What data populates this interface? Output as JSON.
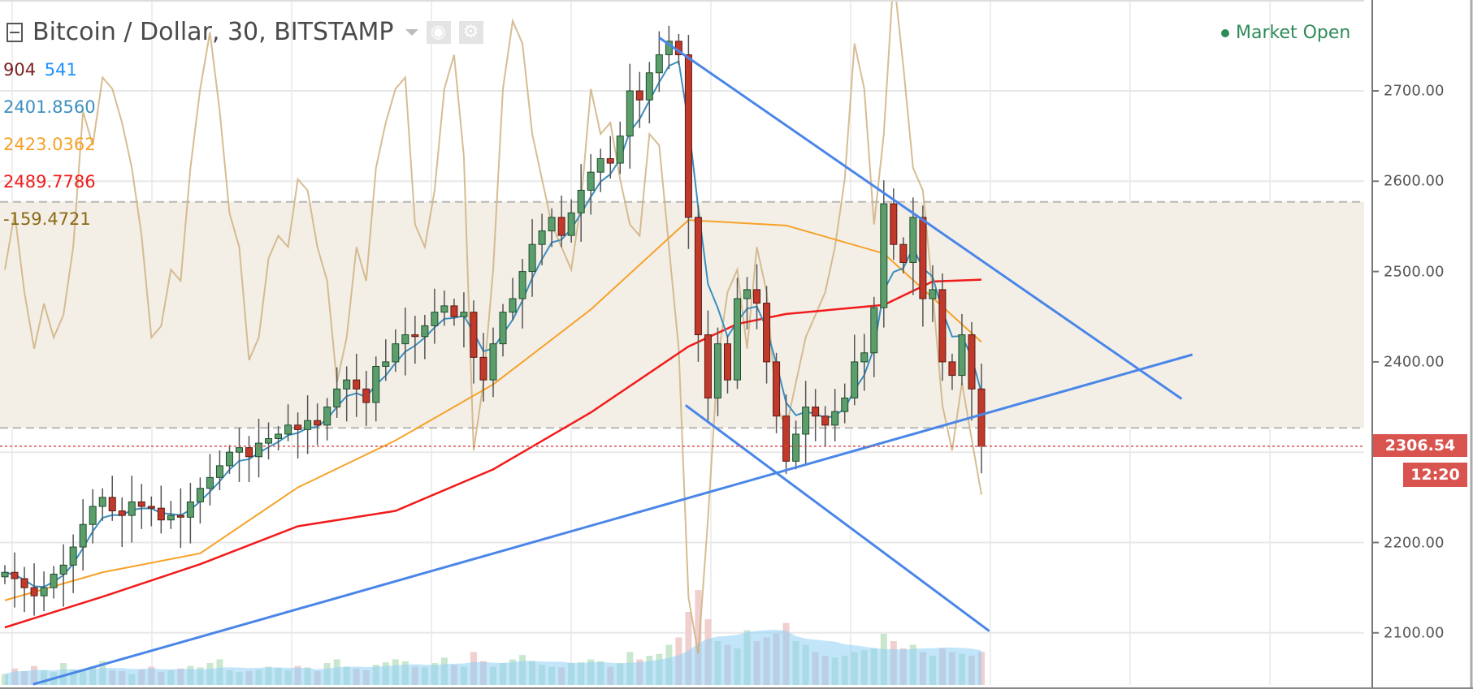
{
  "header": {
    "title": "Bitcoin / Dollar, 30, BITSTAMP",
    "market_status": "Market Open",
    "market_status_color": "#2e8b57",
    "icons": [
      "collapse-icon",
      "caret-down-icon",
      "eye-icon",
      "gear-icon"
    ]
  },
  "legend": {
    "volume": "904",
    "volume_ma": "541",
    "ma_fast": "2401.8560",
    "ma_mid": "2423.0362",
    "ma_slow": "2489.7786",
    "oscillator": "-159.4721"
  },
  "axis": {
    "ticks": [
      "2700.00",
      "2600.00",
      "2500.00",
      "2400.00",
      "2200.00",
      "2100.00"
    ],
    "last_price": "2306.54",
    "countdown": "12:20"
  },
  "colors": {
    "up": "#5b9e6b",
    "down": "#c0392b",
    "ma_fast": "#3b8fc0",
    "ma_mid": "#f7a128",
    "ma_slow": "#f21b1b",
    "oscillator": "#cfb180",
    "trendline": "#4a86e8",
    "volume_ma": "#8fd0f5",
    "last_price": "#d9534f"
  },
  "chart_data": {
    "type": "candlestick",
    "ylim": [
      2040,
      2800
    ],
    "yticks": [
      2100,
      2200,
      2300,
      2400,
      2500,
      2600,
      2700
    ],
    "grid": true,
    "closes": [
      2167,
      2160,
      2150,
      2141,
      2150,
      2165,
      2175,
      2195,
      2220,
      2240,
      2250,
      2235,
      2230,
      2245,
      2240,
      2238,
      2225,
      2230,
      2228,
      2245,
      2260,
      2272,
      2285,
      2300,
      2305,
      2295,
      2310,
      2315,
      2320,
      2330,
      2325,
      2335,
      2330,
      2350,
      2370,
      2380,
      2370,
      2355,
      2395,
      2400,
      2420,
      2430,
      2428,
      2440,
      2455,
      2462,
      2450,
      2455,
      2405,
      2380,
      2420,
      2455,
      2470,
      2500,
      2530,
      2545,
      2560,
      2540,
      2565,
      2590,
      2610,
      2625,
      2620,
      2650,
      2700,
      2690,
      2720,
      2740,
      2755,
      2740,
      2560,
      2430,
      2360,
      2420,
      2380,
      2470,
      2480,
      2465,
      2400,
      2340,
      2290,
      2320,
      2350,
      2340,
      2330,
      2345,
      2360,
      2400,
      2410,
      2460,
      2575,
      2530,
      2510,
      2560,
      2470,
      2480,
      2400,
      2385,
      2430,
      2370,
      2306.54
    ],
    "ma_mid": {
      "bar": [
        0,
        10,
        20,
        30,
        40,
        50,
        60,
        70,
        80,
        90,
        100
      ],
      "value": [
        2136,
        2167,
        2188,
        2261,
        2313,
        2375,
        2458,
        2557,
        2551,
        2520,
        2422
      ]
    },
    "ma_slow": {
      "bar": [
        0,
        10,
        20,
        30,
        40,
        50,
        60,
        70,
        75,
        80,
        90,
        95,
        100
      ],
      "value": [
        2106,
        2140,
        2176,
        2218,
        2235,
        2281,
        2344,
        2417,
        2442,
        2453,
        2463,
        2489,
        2491
      ]
    },
    "oscillator": {
      "upper_band": 100,
      "lower_band": -100,
      "values": [
        40,
        90,
        20,
        -30,
        10,
        -20,
        0,
        60,
        180,
        150,
        210,
        200,
        170,
        130,
        70,
        -20,
        -10,
        40,
        30,
        130,
        200,
        250,
        180,
        90,
        60,
        -40,
        -20,
        50,
        70,
        60,
        120,
        110,
        60,
        30,
        -60,
        -20,
        60,
        30,
        130,
        170,
        200,
        210,
        80,
        60,
        110,
        200,
        230,
        140,
        -120,
        -60,
        40,
        200,
        260,
        240,
        160,
        120,
        80,
        60,
        40,
        100,
        200,
        160,
        170,
        120,
        80,
        70,
        160,
        150,
        60,
        -30,
        -250,
        -300,
        -180,
        -40,
        20,
        40,
        -30,
        60,
        20,
        -80,
        -100,
        -60,
        -20,
        0,
        20,
        60,
        120,
        240,
        200,
        80,
        160,
        300,
        220,
        130,
        110,
        20,
        -80,
        -120,
        -60,
        -110,
        -159
      ]
    },
    "volume": [
      300,
      450,
      380,
      520,
      400,
      350,
      600,
      420,
      380,
      500,
      650,
      400,
      380,
      300,
      420,
      500,
      360,
      400,
      450,
      520,
      480,
      600,
      700,
      400,
      350,
      380,
      420,
      500,
      460,
      400,
      520,
      480,
      380,
      600,
      700,
      500,
      450,
      400,
      550,
      620,
      700,
      650,
      500,
      480,
      600,
      750,
      550,
      500,
      900,
      650,
      500,
      600,
      700,
      820,
      650,
      550,
      500,
      480,
      600,
      620,
      700,
      650,
      500,
      600,
      900,
      700,
      800,
      850,
      1100,
      1300,
      2000,
      2600,
      1800,
      1200,
      1100,
      1000,
      1500,
      1200,
      1300,
      1400,
      1700,
      1200,
      1100,
      900,
      800,
      750,
      800,
      900,
      950,
      1000,
      1400,
      1200,
      1000,
      1100,
      900,
      800,
      1000,
      900,
      850,
      800,
      904
    ],
    "trendlines": [
      {
        "from": [
          67,
          2759
        ],
        "to": [
          120.5,
          2359
        ]
      },
      {
        "from": [
          2.9,
          2043
        ],
        "to": [
          121.6,
          2408
        ]
      },
      {
        "from": [
          69.7,
          2352
        ],
        "to": [
          100.8,
          2102
        ]
      }
    ],
    "last_price": 2306.54
  }
}
